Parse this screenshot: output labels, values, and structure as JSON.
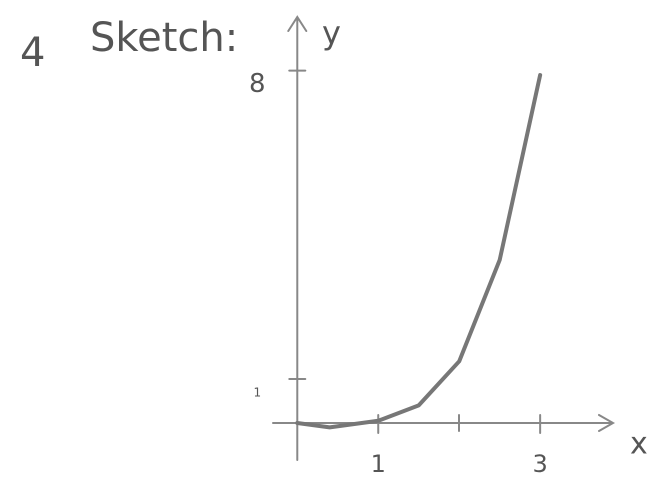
{
  "chart_data": {
    "type": "line",
    "label": "4",
    "title": "Sketch:",
    "x_label": "x",
    "y_label": "y",
    "x": [
      0,
      0.4,
      1,
      1.5,
      2,
      2.5,
      3
    ],
    "series": [
      {
        "color": "#777777",
        "values": [
          0,
          -0.1,
          0.05,
          0.4,
          1.4,
          3.7,
          7.9
        ]
      }
    ],
    "xlim": [
      -0.3,
      3.9
    ],
    "ylim": [
      -0.5,
      9.4
    ],
    "xticks": [
      1,
      3
    ],
    "yticks": [
      1,
      8
    ]
  }
}
